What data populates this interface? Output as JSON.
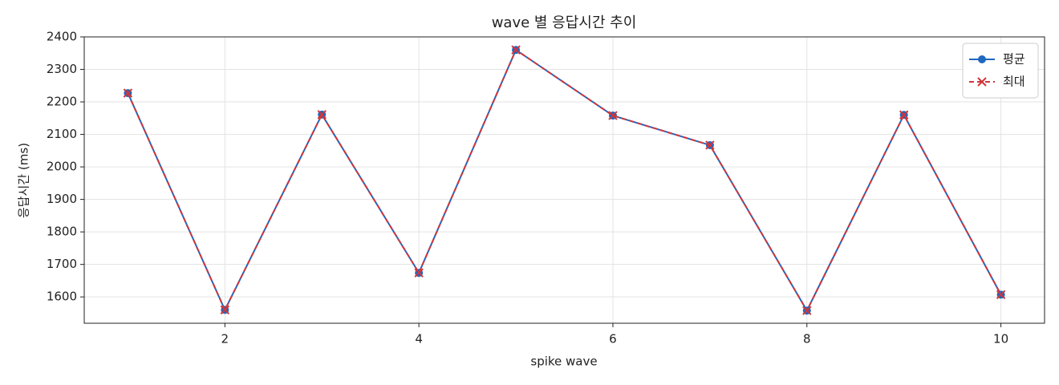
{
  "chart_data": {
    "type": "line",
    "title": "wave 별 응답시간 추이",
    "x_label": "spike wave",
    "y_label": "응답시간 (ms)",
    "x": [
      1,
      2,
      3,
      4,
      5,
      6,
      7,
      8,
      9,
      10
    ],
    "series": [
      {
        "name": "평균",
        "color": "#1f68c0",
        "marker": "o",
        "linestyle": "solid",
        "values": [
          2227,
          1560,
          2161,
          1674,
          2360,
          2158,
          2067,
          1558,
          2160,
          1607
        ]
      },
      {
        "name": "최대",
        "color": "#d0363a",
        "marker": "x",
        "linestyle": "dashed",
        "values": [
          2227,
          1560,
          2161,
          1674,
          2360,
          2158,
          2067,
          1558,
          2160,
          1607
        ]
      }
    ],
    "xlim": [
      0.55,
      10.45
    ],
    "xticks": [
      2,
      4,
      6,
      8,
      10
    ],
    "ylim": [
      1519,
      2400
    ],
    "yticks": [
      1600,
      1700,
      1800,
      1900,
      2000,
      2100,
      2200,
      2300,
      2400
    ],
    "grid": true,
    "legend": "upper right"
  }
}
